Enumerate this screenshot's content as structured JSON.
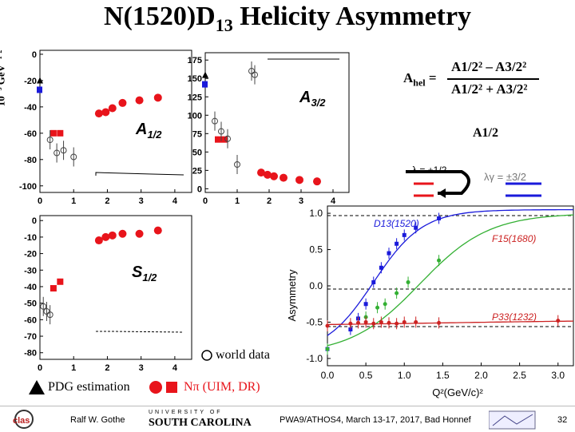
{
  "slide": {
    "title_main": "N(1520)D",
    "title_sub": "13",
    "title_rest": " Helicity Asymmetry",
    "unit_label": "10⁻³ GeV⁻¹′²",
    "formula_lhs": "A",
    "formula_lhs_sub": "hel",
    "formula_eq": "=",
    "formula_num": "A1/2² – A3/2²",
    "formula_den": "A1/2² + A3/2²",
    "right_label_a12": "A1/2",
    "legend_world": "world data",
    "legend_pdg": "PDG estimation",
    "legend_npi": "Nπ  (UIM, DR)",
    "footer_author": "Ralf  W. Gothe",
    "footer_event": "PWA9/ATHOS4, March 13-17, 2017, Bad Honnef",
    "page_number": "32",
    "logo_clas": "clas",
    "logo_usc_top": "UNIVERSITY OF",
    "logo_usc": "SOUTH CAROLINA",
    "color_red": "#e8141b",
    "color_blue": "#1a1adb",
    "color_green": "#33b033",
    "color_darkred": "#cc2222"
  },
  "panels": {
    "a12": {
      "label": "A",
      "sub": "1/2",
      "yticks": [
        "0",
        "-20",
        "-40",
        "-60",
        "-80",
        "-100"
      ],
      "xticks": [
        "0",
        "1",
        "2",
        "3",
        "4"
      ]
    },
    "a32": {
      "label": "A",
      "sub": "3/2",
      "yticks": [
        "175",
        "150",
        "125",
        "100",
        "75",
        "50",
        "25",
        "0"
      ],
      "xticks": [
        "0",
        "1",
        "2",
        "3",
        "4"
      ]
    },
    "s12": {
      "label": "S",
      "sub": "1/2",
      "yticks": [
        "0",
        "-10",
        "-20",
        "-30",
        "-40",
        "-50",
        "-60",
        "-70",
        "-80"
      ],
      "xticks": [
        "0",
        "1",
        "2",
        "3",
        "4"
      ]
    }
  },
  "chart_data": [
    {
      "type": "scatter",
      "title": "A1/2",
      "xlabel": "",
      "ylabel": "10^-3 GeV^-1/2",
      "xlim": [
        0,
        4.5
      ],
      "ylim": [
        -105,
        3
      ],
      "series": [
        {
          "name": "Nπ (UIM, DR) circles",
          "x": [
            1.75,
            1.95,
            2.15,
            2.45,
            2.95,
            3.5
          ],
          "y": [
            -45,
            -44,
            -41,
            -37,
            -35,
            -33
          ]
        },
        {
          "name": "Nπ (UIM, DR) squares",
          "x": [
            0.4,
            0.6
          ],
          "y": [
            -60,
            -60
          ]
        },
        {
          "name": "PDG estimation",
          "x": [
            0.0
          ],
          "y": [
            -27
          ]
        },
        {
          "name": "world data",
          "x": [
            0.3,
            0.5,
            0.7,
            1.0
          ],
          "y": [
            -65,
            -75,
            -73,
            -78
          ]
        }
      ]
    },
    {
      "type": "scatter",
      "title": "A3/2",
      "xlabel": "",
      "ylabel": "",
      "xlim": [
        0,
        4.5
      ],
      "ylim": [
        -5,
        185
      ],
      "series": [
        {
          "name": "Nπ (UIM, DR) circles",
          "x": [
            1.75,
            1.95,
            2.15,
            2.45,
            2.95,
            3.5
          ],
          "y": [
            22,
            19,
            17,
            15,
            12,
            10
          ]
        },
        {
          "name": "Nπ (UIM, DR) squares",
          "x": [
            0.4,
            0.6
          ],
          "y": [
            67,
            67
          ]
        },
        {
          "name": "PDG estimation",
          "x": [
            0.0
          ],
          "y": [
            142
          ]
        },
        {
          "name": "world data",
          "x": [
            0.3,
            0.5,
            0.7,
            1.0,
            1.45,
            1.55
          ],
          "y": [
            92,
            78,
            68,
            33,
            160,
            155
          ]
        }
      ]
    },
    {
      "type": "scatter",
      "title": "S1/2",
      "xlabel": "",
      "ylabel": "",
      "xlim": [
        0,
        4.5
      ],
      "ylim": [
        -84,
        3
      ],
      "series": [
        {
          "name": "Nπ (UIM, DR) circles",
          "x": [
            1.75,
            1.95,
            2.15,
            2.45,
            2.95,
            3.5
          ],
          "y": [
            -12,
            -10,
            -9,
            -8,
            -8,
            -6
          ]
        },
        {
          "name": "Nπ (UIM, DR) squares",
          "x": [
            0.4,
            0.6
          ],
          "y": [
            -41,
            -37
          ]
        },
        {
          "name": "world data",
          "x": [
            0.1,
            0.2,
            0.3
          ],
          "y": [
            -52,
            -55,
            -57
          ]
        }
      ]
    },
    {
      "type": "line",
      "title": "",
      "xlabel": "Q²(GeV/c)²",
      "ylabel": "Asymmetry",
      "xlim": [
        0,
        3.2
      ],
      "ylim": [
        -1.1,
        1.1
      ],
      "xticks": [
        "0.0",
        "0.5",
        "1.0",
        "1.5",
        "2.0",
        "2.5",
        "3.0"
      ],
      "yticks": [
        "1.0",
        "0.5",
        "0.0",
        "-0.5",
        "-1.0"
      ],
      "series": [
        {
          "name": "D13(1520)",
          "x": [
            0.0,
            0.3,
            0.4,
            0.5,
            0.6,
            0.7,
            0.8,
            0.9,
            1.0,
            1.15,
            1.45
          ],
          "y": [
            -0.87,
            -0.6,
            -0.45,
            -0.25,
            0.05,
            0.25,
            0.45,
            0.58,
            0.7,
            0.8,
            0.93
          ]
        },
        {
          "name": "F15(1680)",
          "x": [
            0.0,
            0.5,
            0.65,
            0.75,
            0.9,
            1.05,
            1.45
          ],
          "y": [
            -0.87,
            -0.43,
            -0.3,
            -0.25,
            -0.1,
            0.05,
            0.35
          ]
        },
        {
          "name": "P33(1232)",
          "x": [
            0.0,
            0.3,
            0.4,
            0.5,
            0.6,
            0.7,
            0.8,
            0.9,
            1.0,
            1.15,
            1.45,
            3.0
          ],
          "y": [
            -0.55,
            -0.52,
            -0.51,
            -0.5,
            -0.52,
            -0.5,
            -0.51,
            -0.52,
            -0.5,
            -0.5,
            -0.51,
            -0.48
          ]
        }
      ],
      "curve_labels": [
        "D13(1520)",
        "F15(1680)",
        "P33(1232)"
      ],
      "annotations": [
        "λ = +1/2",
        "λ = +3/2",
        "λγ = ±3/2"
      ]
    }
  ]
}
